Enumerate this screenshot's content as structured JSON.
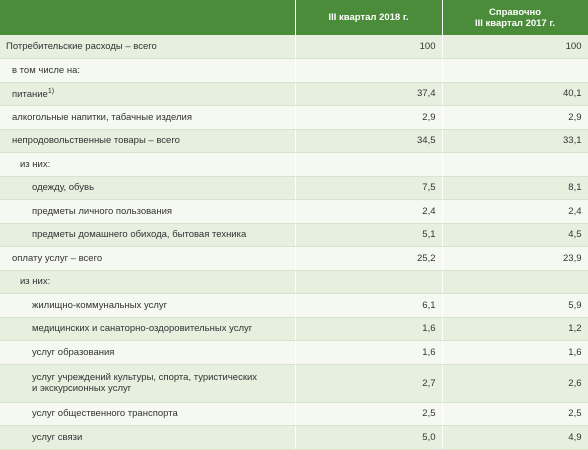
{
  "table": {
    "header": [
      "III квартал 2018 г.",
      "Справочно",
      "III квартал 2017 г."
    ],
    "rows": [
      {
        "label": "Потребительские расходы – всего",
        "values": [
          "100",
          "100"
        ]
      },
      {
        "label": "в том числе на:"
      },
      {
        "label": "питание",
        "note": "1)",
        "values": [
          "37,4",
          "40,1"
        ]
      },
      {
        "label": "алкогольные напитки, табачные изделия",
        "values": [
          "2,9",
          "2,9"
        ]
      },
      {
        "label": "непродовольственные товары – всего",
        "values": [
          "34,5",
          "33,1"
        ]
      },
      {
        "label": "из них:"
      },
      {
        "label": "одежду, обувь",
        "values": [
          "7,5",
          "8,1"
        ]
      },
      {
        "label": "предметы личного пользования",
        "values": [
          "2,4",
          "2,4"
        ]
      },
      {
        "label": "предметы домашнего обихода, бытовая техника",
        "values": [
          "5,1",
          "4,5"
        ]
      },
      {
        "label": "оплату услуг – всего",
        "values": [
          "25,2",
          "23,9"
        ]
      },
      {
        "label": "из них:"
      },
      {
        "label": "жилищно-коммунальных услуг",
        "values": [
          "6,1",
          "5,9"
        ]
      },
      {
        "label": "медицинских и санаторно-оздоровительных услуг",
        "values": [
          "1,6",
          "1,2"
        ]
      },
      {
        "label": "услуг образования",
        "values": [
          "1,6",
          "1,6"
        ]
      },
      {
        "label": "услуг учреждений культуры, спорта, туристических",
        "label2": "и экскурсионных услуг",
        "values": [
          "2,7",
          "2,6"
        ]
      },
      {
        "label": "услуг общественного транспорта",
        "values": [
          "2,5",
          "2,5"
        ]
      },
      {
        "label": "услуг связи",
        "values": [
          "5,0",
          "4,9"
        ]
      }
    ]
  }
}
